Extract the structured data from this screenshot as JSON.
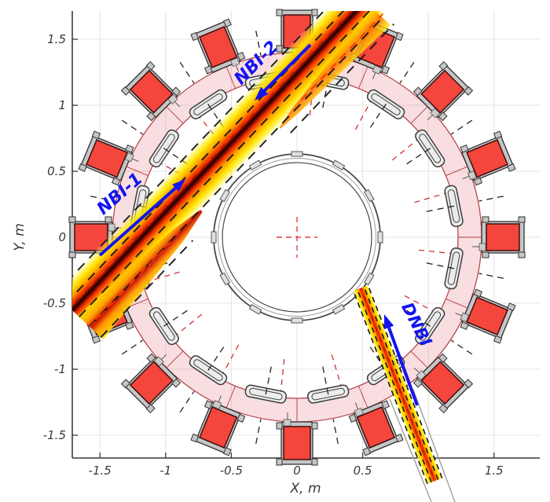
{
  "axes": {
    "xlabel": "X, m",
    "ylabel": "Y, m",
    "x_tick_labels": [
      "-1.5",
      "-1",
      "-0.5",
      "0",
      "0.5",
      "1",
      "1.5"
    ],
    "y_tick_labels": [
      "-1.5",
      "-1",
      "-0.5",
      "0",
      "0.5",
      "1",
      "1.5"
    ]
  },
  "annotations": {
    "nbi1_label": "NBI-1",
    "nbi2_label": "NBI-2",
    "dnbi_label": "DNBI"
  },
  "colors": {
    "axis": "#3a3a3a",
    "grid": "#e4e4e4",
    "annotation_blue": "#1414f0",
    "coil_fill": "#f4463c",
    "coil_border": "#3b0f0f",
    "coil_frame": "#c6c6c6",
    "frame_border": "#2f2f2f",
    "ring_fill": "#e87a86",
    "ring_edge": "#b43b3b",
    "port_fill": "#ececec",
    "structure": "#3d3d3d",
    "beam_glow": "#ffee00",
    "beam_mid": "#ff9a00",
    "beam_hot": "#e63400",
    "beam_dark": "#8c0c00",
    "beam_core": "#140000",
    "dash_black": "#151515",
    "dash_red": "#ff3000",
    "crosshair_red": "#e04040",
    "duct_gray": "#999999"
  },
  "chart_data": {
    "type": "diagram",
    "description": "Top view of a spherical tokamak with heating and diagnostic neutral beam trajectories",
    "xlabel": "X, m",
    "ylabel": "Y, m",
    "x_range_m": [
      -1.71,
      1.85
    ],
    "y_range_m": [
      -1.68,
      1.72
    ],
    "grid_step_m": 0.5,
    "grid": "on",
    "tokamak": {
      "tf_coil_count": 16,
      "tf_coil_center_radius_m": 1.57,
      "vessel_inner_radius_m": 1.23,
      "vessel_outer_radius_m": 1.41,
      "central_column_radius_m": 0.63,
      "port_count": 16
    },
    "beams": [
      {
        "name": "NBI-1",
        "path_m": [
          [
            -1.71,
            -0.56
          ],
          [
            0.52,
            1.8
          ]
        ],
        "direction": "injected toward upper right",
        "style": "wide band, yellow edge to black core"
      },
      {
        "name": "NBI-2",
        "path_m": [
          [
            0.52,
            1.8
          ],
          [
            -1.71,
            -0.56
          ]
        ],
        "direction": "injected toward lower left, counter to NBI-1",
        "style": "wide band, yellow edge to black core"
      },
      {
        "name": "DNBI",
        "path_m": [
          [
            1.02,
            -1.79
          ],
          [
            0.49,
            -0.39
          ]
        ],
        "direction": "aimed at plasma, stops at central column",
        "style": "narrow diagnostic beam"
      }
    ]
  }
}
